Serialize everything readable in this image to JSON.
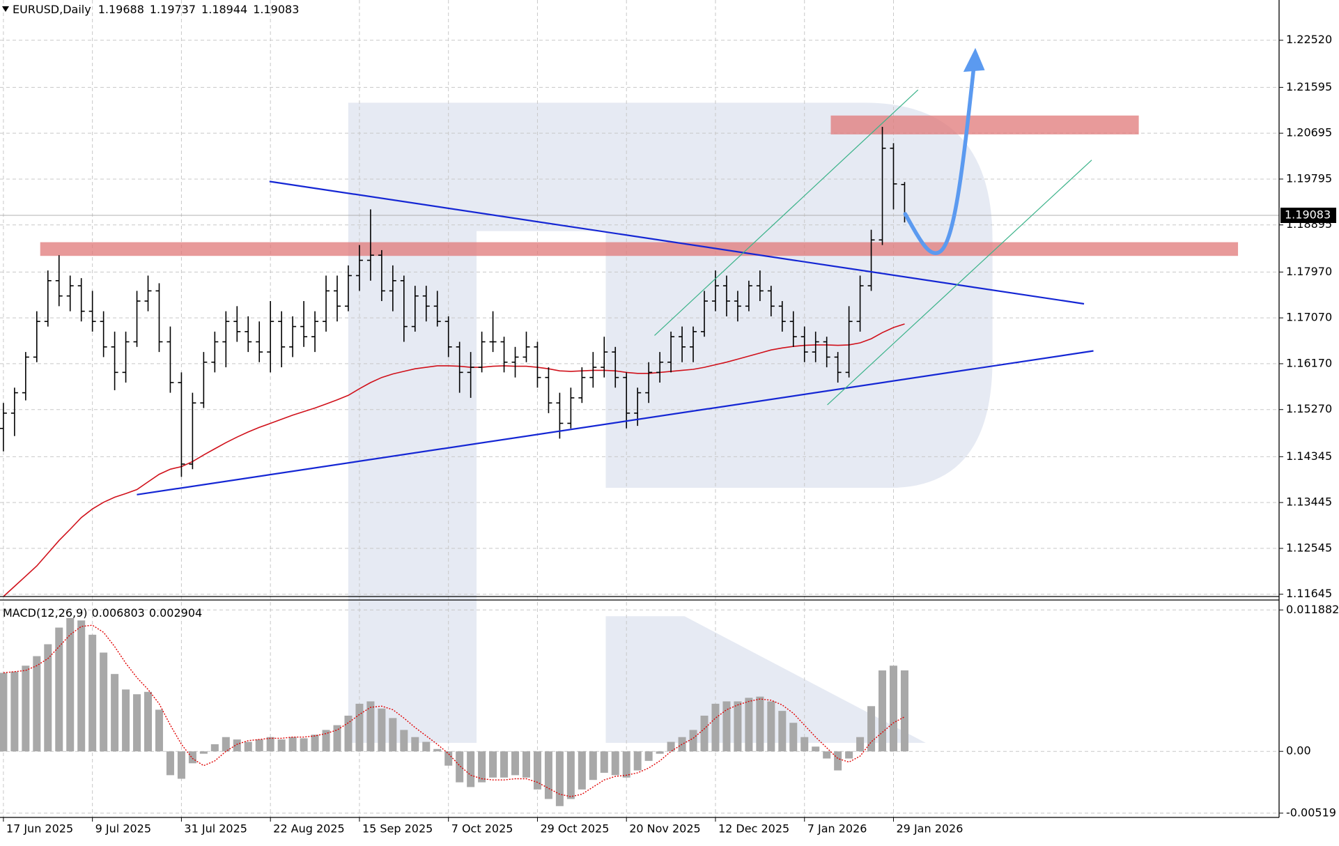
{
  "chart_data": [
    {
      "type": "ohlc",
      "title": "EURUSD,Daily",
      "grid": true,
      "categories": [
        "17 Jun 2025",
        null,
        null,
        null,
        null,
        null,
        null,
        null,
        "9 Jul 2025",
        null,
        null,
        null,
        null,
        null,
        null,
        null,
        "31 Jul 2025",
        null,
        null,
        null,
        null,
        null,
        null,
        null,
        "22 Aug 2025",
        null,
        null,
        null,
        null,
        null,
        null,
        null,
        "15 Sep 2025",
        null,
        null,
        null,
        null,
        null,
        null,
        null,
        "7 Oct 2025",
        null,
        null,
        null,
        null,
        null,
        null,
        null,
        "29 Oct 2025",
        null,
        null,
        null,
        null,
        null,
        null,
        null,
        "20 Nov 2025",
        null,
        null,
        null,
        null,
        null,
        null,
        null,
        "12 Dec 2025",
        null,
        null,
        null,
        null,
        null,
        null,
        null,
        "7 Jan 2026",
        null,
        null,
        null,
        null,
        null,
        null,
        null,
        "29 Jan 2026",
        null
      ],
      "color": "#000000",
      "values": [
        [
          1.149,
          1.154,
          1.1445,
          1.152
        ],
        [
          1.152,
          1.157,
          1.1475,
          1.156
        ],
        [
          1.156,
          1.164,
          1.1545,
          1.163
        ],
        [
          1.163,
          1.172,
          1.162,
          1.17
        ],
        [
          1.17,
          1.18,
          1.169,
          1.178
        ],
        [
          1.178,
          1.183,
          1.173,
          1.175
        ],
        [
          1.175,
          1.179,
          1.172,
          1.177
        ],
        [
          1.177,
          1.1785,
          1.17,
          1.172
        ],
        [
          1.172,
          1.176,
          1.168,
          1.17
        ],
        [
          1.17,
          1.172,
          1.163,
          1.165
        ],
        [
          1.165,
          1.168,
          1.1565,
          1.16
        ],
        [
          1.16,
          1.168,
          1.158,
          1.166
        ],
        [
          1.166,
          1.176,
          1.165,
          1.174
        ],
        [
          1.174,
          1.179,
          1.172,
          1.176
        ],
        [
          1.176,
          1.1775,
          1.164,
          1.166
        ],
        [
          1.166,
          1.169,
          1.156,
          1.158
        ],
        [
          1.158,
          1.16,
          1.1395,
          1.142
        ],
        [
          1.142,
          1.156,
          1.141,
          1.154
        ],
        [
          1.154,
          1.164,
          1.153,
          1.162
        ],
        [
          1.162,
          1.168,
          1.16,
          1.166
        ],
        [
          1.166,
          1.172,
          1.161,
          1.17
        ],
        [
          1.17,
          1.173,
          1.166,
          1.168
        ],
        [
          1.168,
          1.171,
          1.164,
          1.166
        ],
        [
          1.166,
          1.17,
          1.162,
          1.164
        ],
        [
          1.164,
          1.174,
          1.16,
          1.17
        ],
        [
          1.17,
          1.172,
          1.161,
          1.165
        ],
        [
          1.165,
          1.171,
          1.163,
          1.169
        ],
        [
          1.169,
          1.174,
          1.165,
          1.167
        ],
        [
          1.167,
          1.172,
          1.164,
          1.17
        ],
        [
          1.17,
          1.179,
          1.168,
          1.176
        ],
        [
          1.176,
          1.179,
          1.17,
          1.173
        ],
        [
          1.173,
          1.181,
          1.172,
          1.179
        ],
        [
          1.179,
          1.185,
          1.176,
          1.182
        ],
        [
          1.182,
          1.192,
          1.178,
          1.183
        ],
        [
          1.183,
          1.184,
          1.174,
          1.176
        ],
        [
          1.176,
          1.181,
          1.172,
          1.178
        ],
        [
          1.178,
          1.179,
          1.166,
          1.169
        ],
        [
          1.169,
          1.177,
          1.168,
          1.175
        ],
        [
          1.175,
          1.177,
          1.17,
          1.173
        ],
        [
          1.173,
          1.176,
          1.169,
          1.17
        ],
        [
          1.17,
          1.171,
          1.163,
          1.165
        ],
        [
          1.165,
          1.166,
          1.156,
          1.16
        ],
        [
          1.16,
          1.164,
          1.155,
          1.161
        ],
        [
          1.161,
          1.168,
          1.16,
          1.166
        ],
        [
          1.166,
          1.172,
          1.164,
          1.166
        ],
        [
          1.166,
          1.167,
          1.16,
          1.162
        ],
        [
          1.162,
          1.165,
          1.159,
          1.163
        ],
        [
          1.163,
          1.168,
          1.162,
          1.165
        ],
        [
          1.165,
          1.166,
          1.157,
          1.159
        ],
        [
          1.159,
          1.161,
          1.152,
          1.154
        ],
        [
          1.154,
          1.156,
          1.147,
          1.15
        ],
        [
          1.15,
          1.157,
          1.149,
          1.155
        ],
        [
          1.155,
          1.161,
          1.154,
          1.159
        ],
        [
          1.159,
          1.164,
          1.157,
          1.161
        ],
        [
          1.161,
          1.167,
          1.159,
          1.164
        ],
        [
          1.164,
          1.165,
          1.157,
          1.159
        ],
        [
          1.159,
          1.16,
          1.149,
          1.152
        ],
        [
          1.152,
          1.157,
          1.1495,
          1.156
        ],
        [
          1.156,
          1.162,
          1.154,
          1.16
        ],
        [
          1.16,
          1.164,
          1.158,
          1.162
        ],
        [
          1.162,
          1.168,
          1.16,
          1.167
        ],
        [
          1.167,
          1.169,
          1.162,
          1.165
        ],
        [
          1.165,
          1.169,
          1.162,
          1.168
        ],
        [
          1.168,
          1.176,
          1.167,
          1.174
        ],
        [
          1.174,
          1.18,
          1.172,
          1.177
        ],
        [
          1.177,
          1.179,
          1.171,
          1.174
        ],
        [
          1.174,
          1.176,
          1.17,
          1.173
        ],
        [
          1.173,
          1.178,
          1.172,
          1.177
        ],
        [
          1.177,
          1.18,
          1.174,
          1.176
        ],
        [
          1.176,
          1.177,
          1.171,
          1.173
        ],
        [
          1.173,
          1.174,
          1.168,
          1.17
        ],
        [
          1.17,
          1.172,
          1.165,
          1.167
        ],
        [
          1.167,
          1.169,
          1.162,
          1.164
        ],
        [
          1.164,
          1.168,
          1.162,
          1.166
        ],
        [
          1.166,
          1.167,
          1.161,
          1.163
        ],
        [
          1.163,
          1.164,
          1.158,
          1.16
        ],
        [
          1.16,
          1.173,
          1.159,
          1.17
        ],
        [
          1.17,
          1.179,
          1.168,
          1.177
        ],
        [
          1.177,
          1.188,
          1.176,
          1.186
        ],
        [
          1.186,
          1.2082,
          1.185,
          1.204
        ],
        [
          1.204,
          1.205,
          1.192,
          1.197
        ],
        [
          1.19688,
          1.19737,
          1.18944,
          1.19083
        ]
      ],
      "lines": [
        {
          "color": "#d0101a",
          "values": [
            1.116,
            1.118,
            1.12,
            1.122,
            1.1245,
            1.127,
            1.1292,
            1.1315,
            1.1332,
            1.1345,
            1.1355,
            1.1362,
            1.137,
            1.1385,
            1.14,
            1.141,
            1.1415,
            1.1425,
            1.1438,
            1.145,
            1.1462,
            1.1473,
            1.1483,
            1.1492,
            1.15,
            1.1508,
            1.1516,
            1.1523,
            1.153,
            1.1538,
            1.1546,
            1.1555,
            1.1568,
            1.158,
            1.159,
            1.1597,
            1.1602,
            1.1607,
            1.161,
            1.1613,
            1.1613,
            1.1612,
            1.161,
            1.161,
            1.1612,
            1.1613,
            1.1612,
            1.1612,
            1.161,
            1.1607,
            1.1603,
            1.1602,
            1.1603,
            1.1604,
            1.1604,
            1.1603,
            1.16,
            1.1598,
            1.1598,
            1.16,
            1.1602,
            1.1604,
            1.1606,
            1.161,
            1.1615,
            1.162,
            1.1626,
            1.1632,
            1.1638,
            1.1644,
            1.1648,
            1.1651,
            1.1653,
            1.1654,
            1.1654,
            1.1653,
            1.1654,
            1.1658,
            1.1666,
            1.1678,
            1.1688,
            1.1695
          ]
        }
      ],
      "ylim": [
        1.116,
        1.2331
      ],
      "yticks": [
        {
          "value": 1.2252,
          "label": "1.22520"
        },
        1.21595,
        1.20695,
        1.19795,
        1.18895,
        {
          "value": 1.1797,
          "label": "1.17970"
        },
        {
          "value": 1.1707,
          "label": "1.17070"
        },
        {
          "value": 1.1617,
          "label": "1.16170"
        },
        {
          "value": 1.1527,
          "label": "1.15270"
        },
        1.14345,
        1.13445,
        1.12545,
        1.11645
      ]
    },
    {
      "type": "macd",
      "title": "MACD(12,26,9)",
      "grid": true,
      "histogram": {
        "color": "#a8a8a8",
        "values": [
          0.0066,
          0.0067,
          0.0072,
          0.008,
          0.009,
          0.0104,
          0.0112,
          0.011,
          0.0098,
          0.0083,
          0.0065,
          0.0052,
          0.0048,
          0.005,
          0.0035,
          -0.002,
          -0.0023,
          -0.001,
          -0.0002,
          0.0006,
          0.0012,
          0.001,
          0.0008,
          0.001,
          0.0012,
          0.001,
          0.0012,
          0.0011,
          0.0014,
          0.0018,
          0.0022,
          0.003,
          0.004,
          0.0042,
          0.0036,
          0.0028,
          0.0018,
          0.0012,
          0.0008,
          0.0002,
          -0.0012,
          -0.0026,
          -0.003,
          -0.0026,
          -0.0022,
          -0.0022,
          -0.002,
          -0.0022,
          -0.0032,
          -0.004,
          -0.0046,
          -0.004,
          -0.0032,
          -0.0024,
          -0.0018,
          -0.002,
          -0.0022,
          -0.0016,
          -0.0008,
          -0.0002,
          0.0008,
          0.0012,
          0.0018,
          0.003,
          0.004,
          0.0042,
          0.0042,
          0.0045,
          0.0046,
          0.0042,
          0.0034,
          0.0024,
          0.0012,
          0.0004,
          -0.0006,
          -0.0016,
          -0.0006,
          0.0012,
          0.0038,
          0.0068,
          0.0072,
          0.006803
        ]
      },
      "signal": {
        "color": "#e00000",
        "values": [
          0.0066,
          0.0067,
          0.0068,
          0.0072,
          0.0078,
          0.0088,
          0.0098,
          0.0105,
          0.0106,
          0.01,
          0.0088,
          0.0074,
          0.0062,
          0.0052,
          0.004,
          0.0022,
          0.0006,
          -0.0006,
          -0.0012,
          -0.0008,
          0.0,
          0.0006,
          0.0009,
          0.001,
          0.0011,
          0.0011,
          0.0012,
          0.0012,
          0.0013,
          0.0015,
          0.0018,
          0.0024,
          0.0031,
          0.0037,
          0.0038,
          0.0035,
          0.0028,
          0.002,
          0.0013,
          0.0006,
          -0.0002,
          -0.0012,
          -0.002,
          -0.0023,
          -0.0024,
          -0.0024,
          -0.0023,
          -0.0023,
          -0.0026,
          -0.0031,
          -0.0036,
          -0.0038,
          -0.0036,
          -0.003,
          -0.0024,
          -0.0021,
          -0.002,
          -0.0018,
          -0.0014,
          -0.0008,
          0.0,
          0.0006,
          0.0011,
          0.0019,
          0.0028,
          0.0035,
          0.0039,
          0.0042,
          0.0044,
          0.0043,
          0.0039,
          0.0032,
          0.0022,
          0.0012,
          0.0003,
          -0.0006,
          -0.0009,
          -0.0004,
          0.0008,
          0.0016,
          0.0024,
          0.002904
        ]
      },
      "ylim": [
        -0.00555,
        0.0126
      ],
      "yticks": [
        0.011882,
        {
          "value": 0,
          "label": "0.00"
        },
        -0.00519
      ]
    }
  ]
}
